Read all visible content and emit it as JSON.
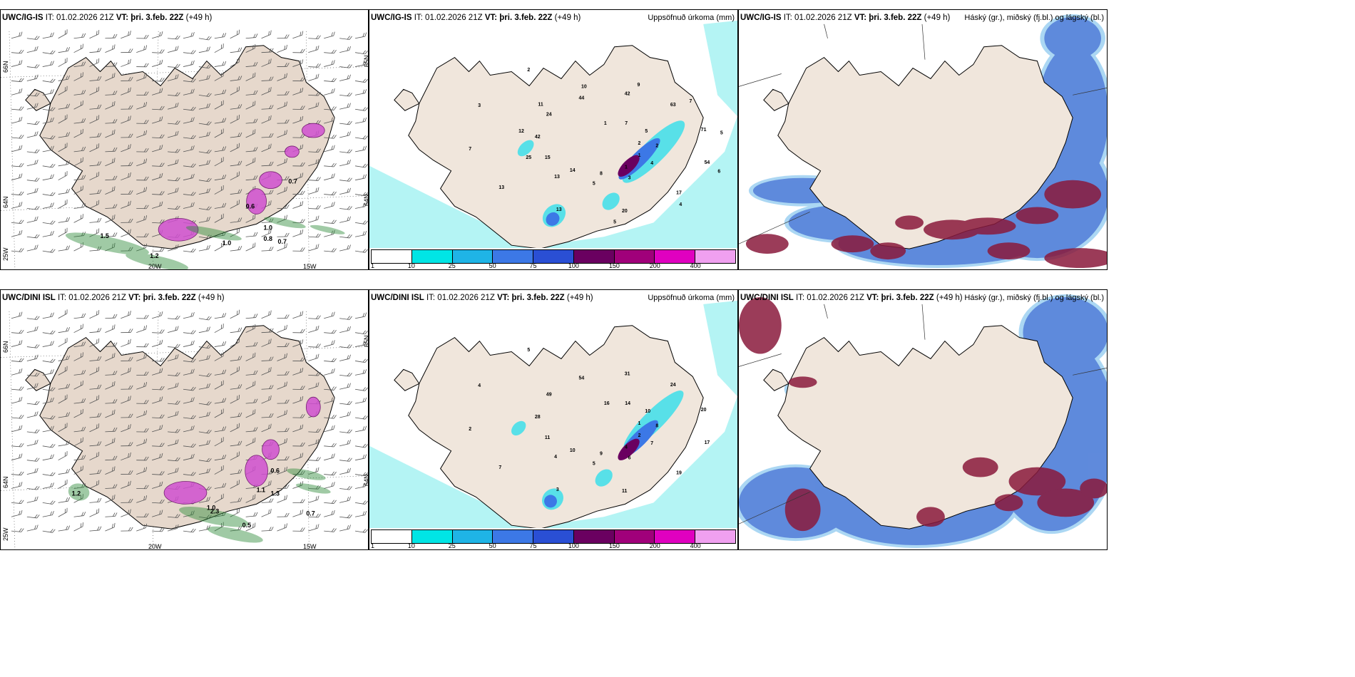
{
  "panels": [
    {
      "id": "p1",
      "model": "UWC/IG-IS",
      "it_label": "IT:",
      "it_value": "01.02.2026 21Z",
      "vt_label": "VT:",
      "vt_value": "þri. 3.feb. 22Z",
      "lead": "(+49 h)",
      "right_title": "",
      "kind": "wind",
      "axis_labels": {
        "left_top": "66N",
        "left_mid": "64N",
        "left_bot": "25W",
        "right_top": "65N",
        "right_mid": "64N",
        "bottom_a": "20W",
        "bottom_b": "15W"
      },
      "values": [
        "1.5",
        "1.2",
        "1.0",
        "1.0",
        "0.8",
        "0.7",
        "0.7",
        "0.6"
      ]
    },
    {
      "id": "p2",
      "model": "UWC/IG-IS",
      "it_label": "IT:",
      "it_value": "01.02.2026 21Z",
      "vt_label": "VT:",
      "vt_value": "þri. 3.feb. 22Z",
      "lead": "(+49 h)",
      "right_title": "Uppsöfnuð úrkoma (mm)",
      "kind": "precip",
      "values": [
        "2",
        "1",
        "1",
        "8",
        "14",
        "15",
        "42",
        "24",
        "44",
        "42",
        "63",
        "71",
        "54",
        "17",
        "20",
        "13",
        "13",
        "7",
        "3",
        "2",
        "1",
        "7",
        "5",
        "2",
        "4",
        "3",
        "5",
        "13",
        "25",
        "12",
        "11",
        "10",
        "9",
        "7",
        "5",
        "6",
        "4",
        "5"
      ]
    },
    {
      "id": "p3",
      "model": "UWC/IG-IS",
      "it_label": "IT:",
      "it_value": "01.02.2026 21Z",
      "vt_label": "VT:",
      "vt_value": "þri. 3.feb. 22Z",
      "lead": "(+49 h)",
      "right_title": "Háský (gr.), miðský (fj.bl.) og lágský (bl.)",
      "kind": "cloud"
    },
    {
      "id": "p4",
      "model": "UWC/DINI ISL",
      "it_label": "IT:",
      "it_value": "01.02.2026 21Z",
      "vt_label": "VT:",
      "vt_value": "þri. 3.feb. 22Z",
      "lead": "(+49 h)",
      "right_title": "",
      "kind": "wind",
      "axis_labels": {
        "left_top": "66N",
        "left_mid": "64N",
        "left_bot": "25W",
        "right_top": "65N",
        "right_mid": "64N",
        "bottom_a": "20W",
        "bottom_b": "15W"
      },
      "values": [
        "1.2",
        "1.0",
        "0.7",
        "0.6",
        "0.5",
        "1.3",
        "2.3",
        "1.1"
      ]
    },
    {
      "id": "p5",
      "model": "UWC/DINI ISL",
      "it_label": "IT:",
      "it_value": "01.02.2026 21Z",
      "vt_label": "VT:",
      "vt_value": "þri. 3.feb. 22Z",
      "lead": "(+49 h)",
      "right_title": "Uppsöfnuð úrkoma (mm)",
      "kind": "precip",
      "values": [
        "1",
        "2",
        "4",
        "9",
        "10",
        "11",
        "28",
        "49",
        "54",
        "31",
        "24",
        "20",
        "17",
        "19",
        "11",
        "3",
        "7",
        "2",
        "4",
        "5",
        "16",
        "14",
        "10",
        "8",
        "7",
        "6",
        "5",
        "4"
      ]
    },
    {
      "id": "p6",
      "model": "UWC/DINI ISL",
      "it_label": "IT:",
      "it_value": "01.02.2026 21Z",
      "vt_label": "VT:",
      "vt_value": "þri. 3.feb. 22Z",
      "lead": "(+49 h)",
      "right_title": "Háský (gr.), miðský (fj.bl.) og lágský (bl.)",
      "kind": "cloud"
    }
  ],
  "precip_legend": {
    "ticks": [
      "1",
      "10",
      "25",
      "50",
      "75",
      "100",
      "150",
      "200",
      "400"
    ],
    "colors": [
      "#ffffff",
      "#00e5e5",
      "#1fb4e6",
      "#3c78e6",
      "#2a4fd4",
      "#6a0060",
      "#a0007a",
      "#e000c0",
      "#f0a0f0"
    ]
  },
  "colors": {
    "land": "#f0e6dc",
    "land_wind": "#e6d8cc",
    "sea_precip_light": "#b4f4f4",
    "sea_precip_mid": "#58e0e8",
    "cloud_high": "#8a1a3c",
    "cloud_mid": "#4a4ac8",
    "cloud_low": "#5ab0e8",
    "precip_green": "#2e8b3a",
    "snow_pink": "#d050d0"
  }
}
